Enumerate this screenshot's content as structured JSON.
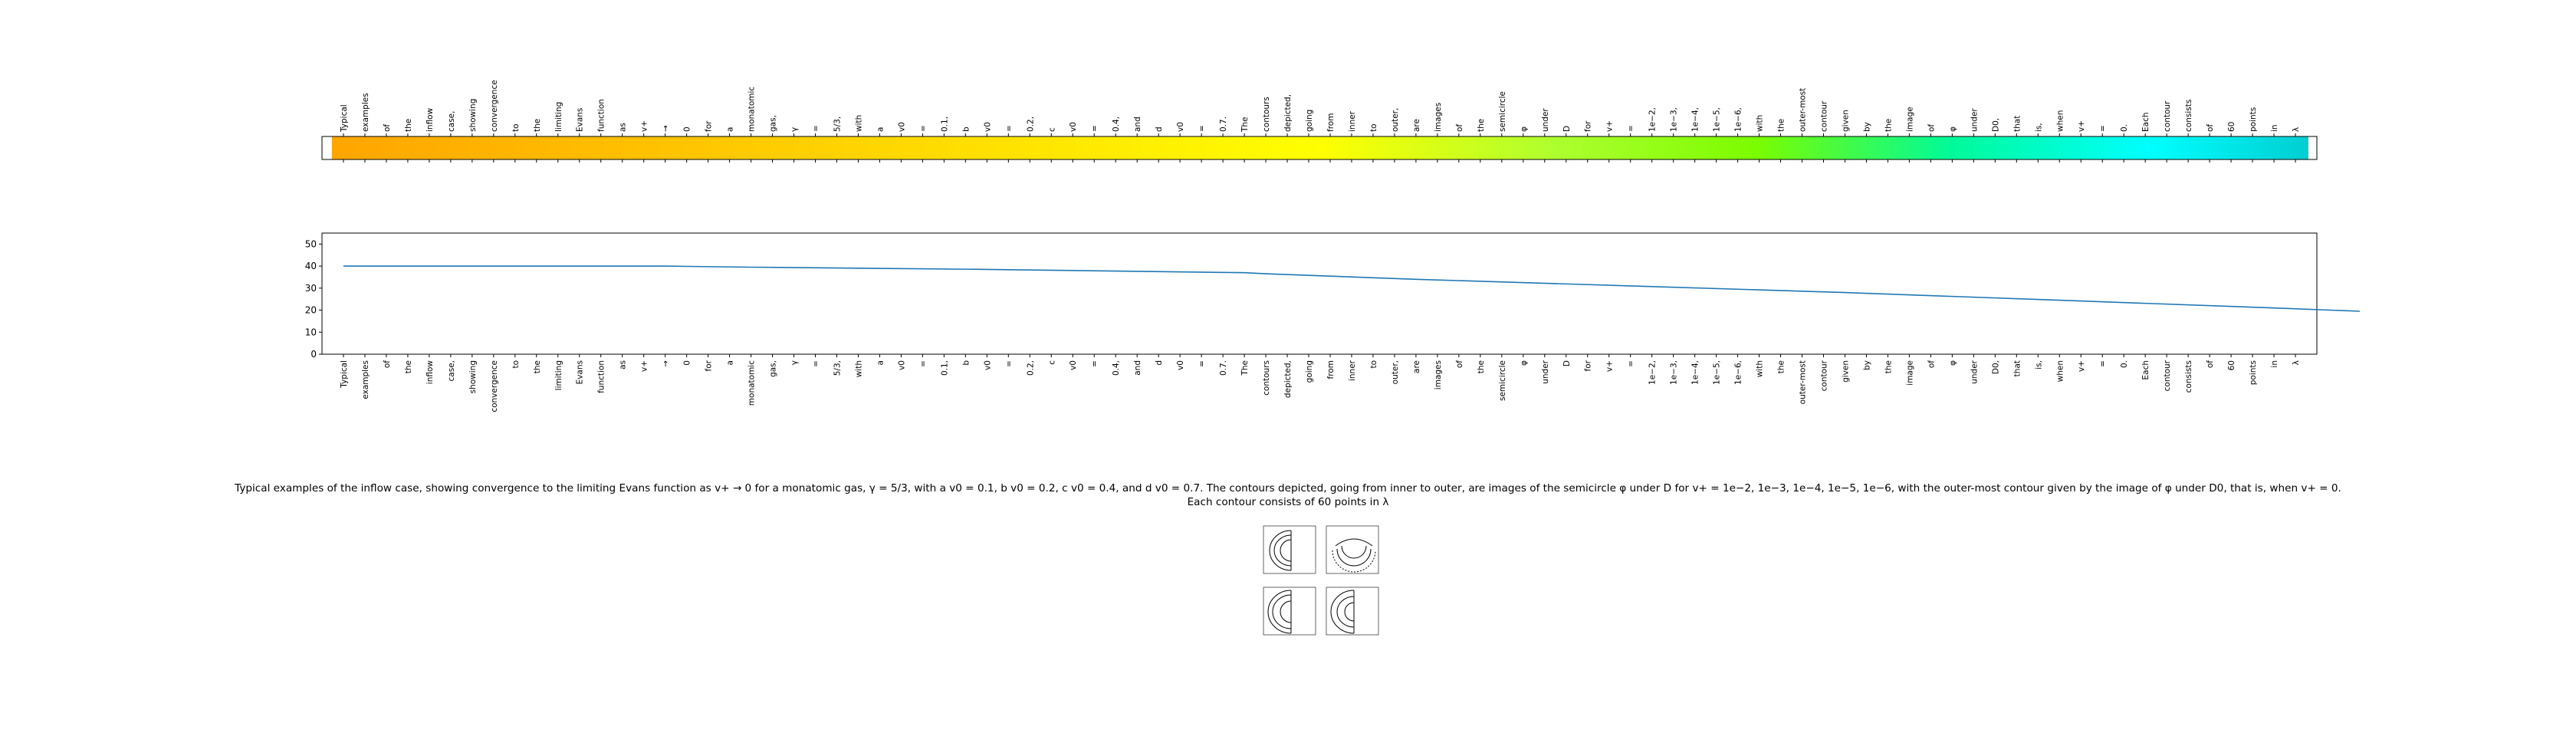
{
  "caption_line1": "Typical examples of the inflow case, showing convergence to the limiting Evans function as v+ → 0 for a monatomic gas, γ = 5/3, with a v0 = 0.1, b v0 = 0.2, c v0 = 0.4, and d v0 = 0.7. The contours depicted, going from inner to outer, are images of the semicircle φ under D for v+ = 1e−2, 1e−3, 1e−4, 1e−5, 1e−6, with the outer-most contour given by the image of φ under D0, that is, when v+ = 0.",
  "caption_line2": "Each contour consists of 60 points in λ",
  "chart_data": [
    {
      "type": "heatmap",
      "title": "",
      "xlabel": "",
      "ylabel": "",
      "tick_labels": [
        "Typical",
        "examples",
        "of",
        "the",
        "inflow",
        "case,",
        "showing",
        "convergence",
        "to",
        "the",
        "limiting",
        "Evans",
        "function",
        "as",
        "v+",
        "→",
        "0",
        "for",
        "a",
        "monatomic",
        "gas,",
        "γ",
        "=",
        "5/3,",
        "with",
        "a",
        "v0",
        "=",
        "0.1,",
        "b",
        "v0",
        "=",
        "0.2,",
        "c",
        "v0",
        "=",
        "0.4,",
        "and",
        "d",
        "v0",
        "=",
        "0.7.",
        "The",
        "contours",
        "depicted,",
        "going",
        "from",
        "inner",
        "to",
        "outer,",
        "are",
        "images",
        "of",
        "the",
        "semicircle",
        "φ",
        "under",
        "D",
        "for",
        "v+",
        "=",
        "1e−2,",
        "1e−3,",
        "1e−4,",
        "1e−5,",
        "1e−6,",
        "with",
        "the",
        "outer-most",
        "contour",
        "given",
        "by",
        "the",
        "image",
        "of",
        "φ",
        "under",
        "D0,",
        "that",
        "is,",
        "when",
        "v+",
        "=",
        "0.",
        "Each",
        "contour",
        "consists",
        "of",
        "60",
        "points",
        "in",
        "λ"
      ],
      "colors": [
        "#ffa500",
        "#ffd700",
        "#ffff00",
        "#adff2f",
        "#7cfc00",
        "#00fa9a",
        "#00ffff",
        "#00ced1"
      ],
      "color_stops": [
        0,
        0.28,
        0.5,
        0.62,
        0.72,
        0.82,
        0.92,
        1
      ]
    },
    {
      "type": "line",
      "title": "",
      "xlabel": "",
      "ylabel": "",
      "ylim": [
        0,
        55
      ],
      "yticks": [
        0,
        10,
        20,
        30,
        40,
        50
      ],
      "grid": false,
      "categories": [
        "Typical",
        "examples",
        "of",
        "the",
        "inflow",
        "case,",
        "showing",
        "convergence",
        "to",
        "the",
        "limiting",
        "Evans",
        "function",
        "as",
        "v+",
        "→",
        "0",
        "for",
        "a",
        "monatomic",
        "gas,",
        "γ",
        "=",
        "5/3,",
        "with",
        "a",
        "v0",
        "=",
        "0.1,",
        "b",
        "v0",
        "=",
        "0.2,",
        "c",
        "v0",
        "=",
        "0.4,",
        "and",
        "d",
        "v0",
        "=",
        "0.7.",
        "The",
        "contours",
        "depicted,",
        "going",
        "from",
        "inner",
        "to",
        "outer,",
        "are",
        "images",
        "of",
        "the",
        "semicircle",
        "φ",
        "under",
        "D",
        "for",
        "v+",
        "=",
        "1e−2,",
        "1e−3,",
        "1e−4,",
        "1e−5,",
        "1e−6,",
        "with",
        "the",
        "outer-most",
        "contour",
        "given",
        "by",
        "the",
        "image",
        "of",
        "φ",
        "under",
        "D0,",
        "that",
        "is,",
        "when",
        "v+",
        "=",
        "0.",
        "Each",
        "contour",
        "consists",
        "of",
        "60",
        "points",
        "in",
        "λ"
      ],
      "series": [
        {
          "color": "#1f77b4",
          "points": [
            [
              0,
              40
            ],
            [
              15,
              40
            ],
            [
              19,
              39.5
            ],
            [
              30,
              38.5
            ],
            [
              42,
              37
            ],
            [
              43,
              36.5
            ],
            [
              50,
              34
            ],
            [
              60,
              31
            ],
            [
              70,
              28
            ],
            [
              80,
              24.5
            ],
            [
              90,
              21
            ],
            [
              94,
              19.5
            ]
          ]
        }
      ]
    }
  ]
}
